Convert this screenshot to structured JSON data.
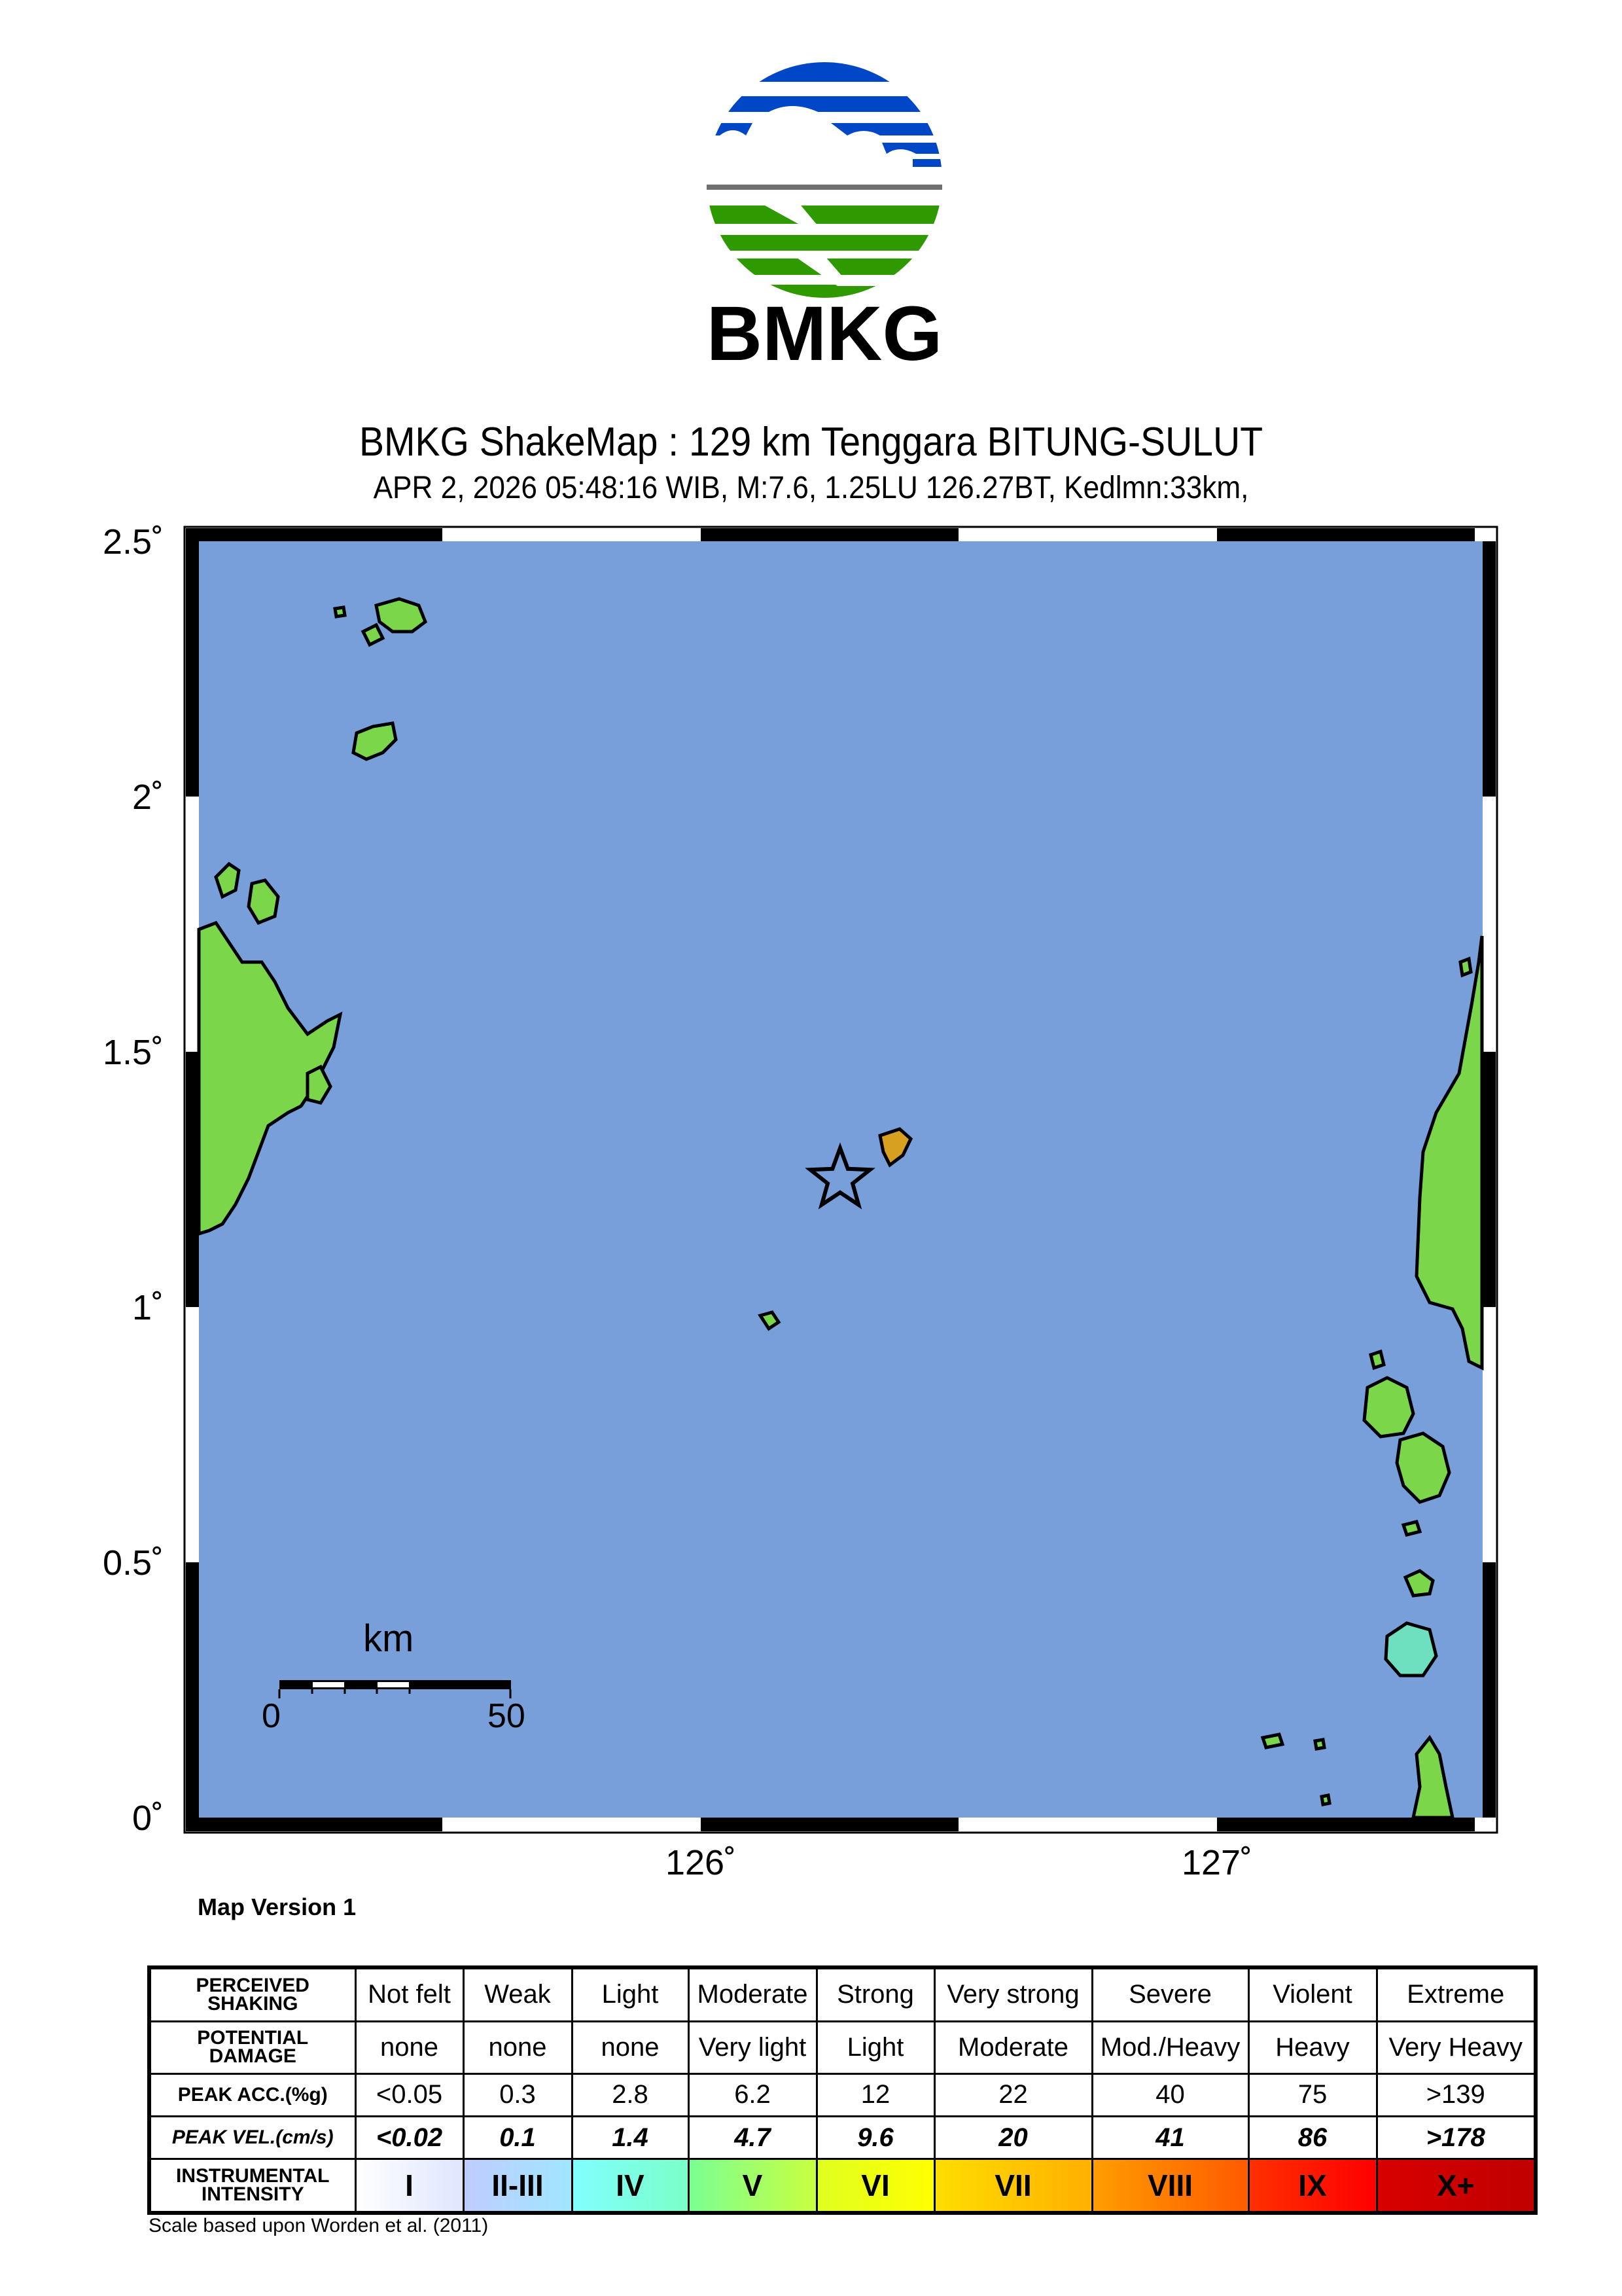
{
  "logo": {
    "text": "BMKG",
    "colors": {
      "blue": "#0047c8",
      "green": "#2e9a00",
      "gray": "#707070"
    }
  },
  "header": {
    "title": "BMKG ShakeMap : 129 km Tenggara BITUNG-SULUT",
    "subtitle": "APR 2, 2026 05:48:16 WIB, M:7.6, 1.25LU 126.27BT, Kedlmn:33km,"
  },
  "map": {
    "ocean_color": "#799fdb",
    "land_color": "#7cd64a",
    "lat_labels": [
      "2.5˚",
      "2˚",
      "1.5˚",
      "1˚",
      "0.5˚",
      "0˚"
    ],
    "lon_labels": [
      "126˚",
      "127˚"
    ],
    "epicenter": {
      "lat": 1.25,
      "lon": 126.27,
      "icon": "star-icon"
    },
    "scale_bar": {
      "unit": "km",
      "start": "0",
      "end": "50"
    },
    "version": "Map Version 1"
  },
  "legend": {
    "rows": [
      {
        "header": "PERCEIVED SHAKING",
        "cells": [
          "Not felt",
          "Weak",
          "Light",
          "Moderate",
          "Strong",
          "Very strong",
          "Severe",
          "Violent",
          "Extreme"
        ]
      },
      {
        "header": "POTENTIAL DAMAGE",
        "cells": [
          "none",
          "none",
          "none",
          "Very light",
          "Light",
          "Moderate",
          "Mod./Heavy",
          "Heavy",
          "Very Heavy"
        ]
      },
      {
        "header": "PEAK ACC.(%g)",
        "cells": [
          "<0.05",
          "0.3",
          "2.8",
          "6.2",
          "12",
          "22",
          "40",
          "75",
          ">139"
        ]
      },
      {
        "header": "PEAK VEL.(cm/s)",
        "cells": [
          "<0.02",
          "0.1",
          "1.4",
          "4.7",
          "9.6",
          "20",
          "41",
          "86",
          ">178"
        ]
      },
      {
        "header": "INSTRUMENTAL INTENSITY",
        "cells": [
          "I",
          "II-III",
          "IV",
          "V",
          "VI",
          "VII",
          "VIII",
          "IX",
          "X+"
        ]
      }
    ],
    "intensity_colors": [
      [
        "#ffffff",
        "#dfe6fe"
      ],
      [
        "#bfccff",
        "#a0e6ff"
      ],
      [
        "#80ffff",
        "#7affc8"
      ],
      [
        "#7aff93",
        "#c8ff40"
      ],
      [
        "#e0ff20",
        "#ffff00"
      ],
      [
        "#ffdd00",
        "#ffb000"
      ],
      [
        "#ff9d00",
        "#ff5a00"
      ],
      [
        "#ff3000",
        "#ff0000"
      ],
      [
        "#d80000",
        "#c00000"
      ]
    ],
    "caption": "Scale based upon Worden et al. (2011)"
  }
}
